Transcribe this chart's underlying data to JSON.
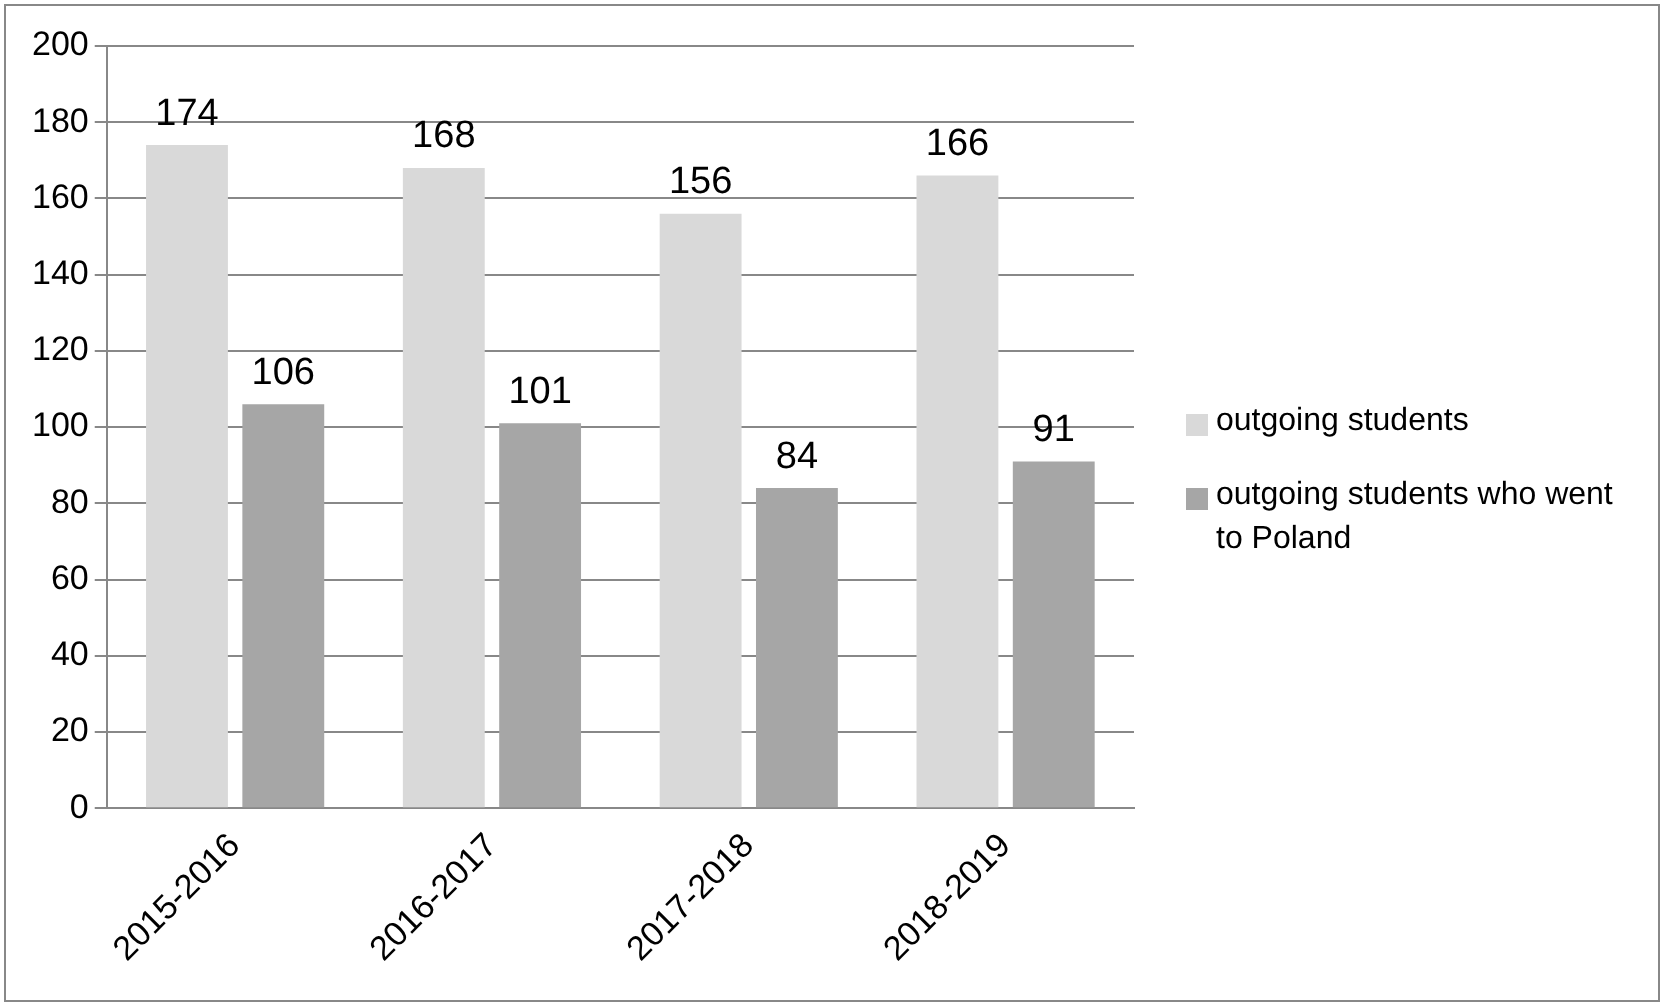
{
  "chart_data": {
    "type": "bar",
    "categories": [
      "2015-2016",
      "2016-2017",
      "2017-2018",
      "2018-2019"
    ],
    "series": [
      {
        "name": "outgoing students",
        "color": "#d9d9d9",
        "values": [
          174,
          168,
          156,
          166
        ]
      },
      {
        "name": "outgoing students who went to Poland",
        "color": "#a6a6a6",
        "values": [
          106,
          101,
          84,
          91
        ]
      }
    ],
    "ylim": [
      0,
      200
    ],
    "yticks": [
      0,
      20,
      40,
      60,
      80,
      100,
      120,
      140,
      160,
      180,
      200
    ],
    "grid": "y",
    "legend": "right",
    "data_labels": true
  }
}
